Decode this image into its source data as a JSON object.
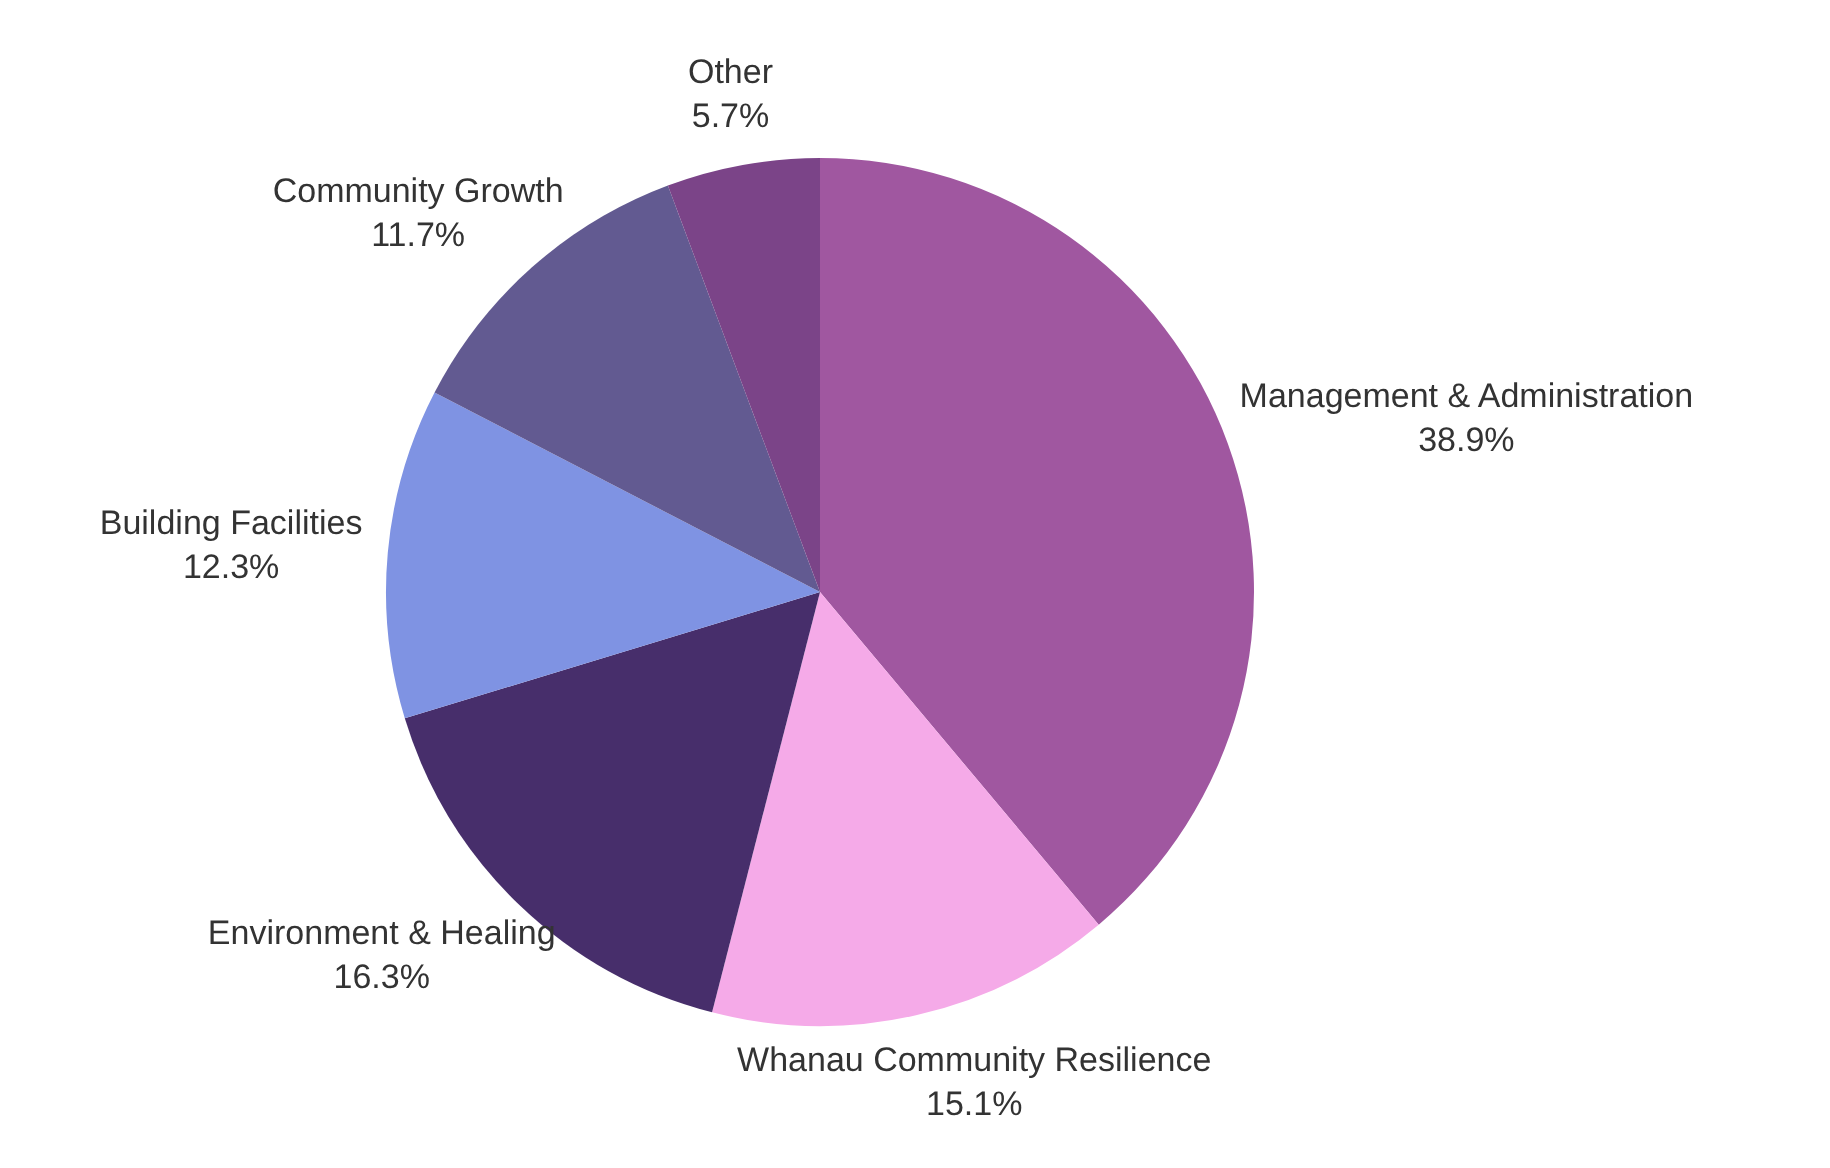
{
  "chart_data": {
    "type": "pie",
    "categories": [
      "Management & Administration",
      "Whanau Community Resilience",
      "Environment & Healing",
      "Building Facilities",
      "Community Growth",
      "Other"
    ],
    "values": [
      38.9,
      15.1,
      16.3,
      12.3,
      11.7,
      5.7
    ],
    "colors": [
      "#a057a0",
      "#f5aae8",
      "#472e6b",
      "#7f93e3",
      "#625a91",
      "#7b4488"
    ],
    "value_labels": [
      "38.9%",
      "15.1%",
      "16.3%",
      "12.3%",
      "11.7%",
      "5.7%"
    ],
    "legend": false
  }
}
